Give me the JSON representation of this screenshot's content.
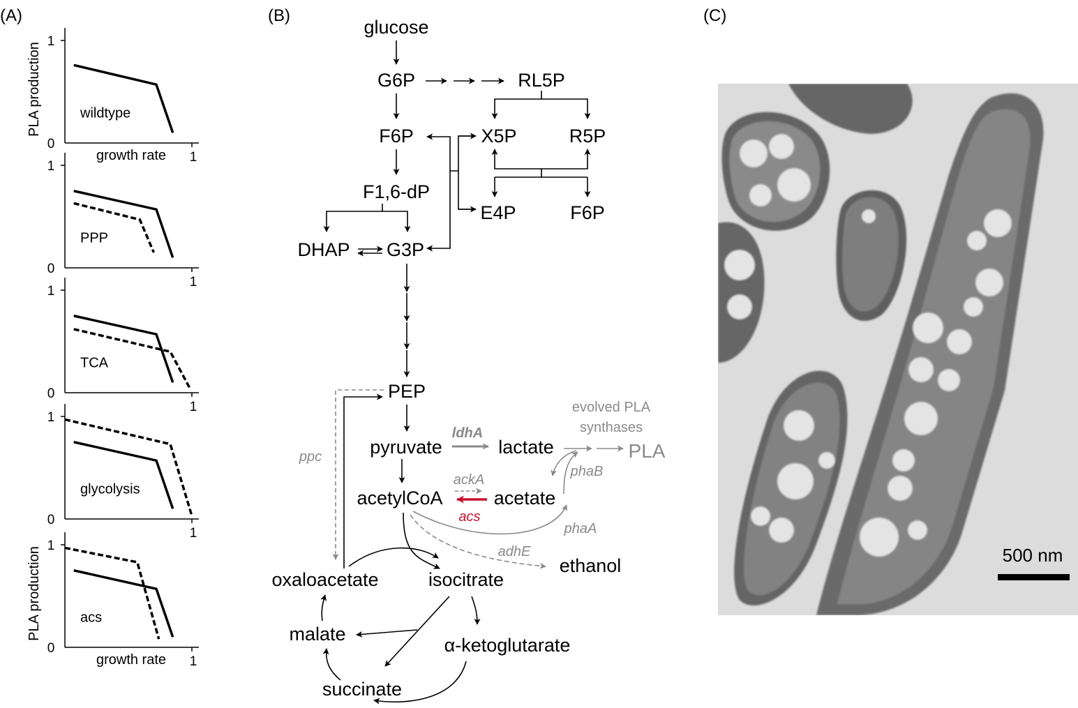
{
  "panels": {
    "a_label": "(A)",
    "b_label": "(B)",
    "c_label": "(C)"
  },
  "chart_data": [
    {
      "type": "line",
      "panel": "wildtype",
      "ylabel": "PLA production",
      "xlabel": "growth rate",
      "xlim": [
        0,
        1
      ],
      "ylim": [
        0,
        1
      ],
      "xticks": [
        "1"
      ],
      "yticks": [
        "0",
        "1"
      ],
      "series": [
        {
          "style": "solid",
          "x": [
            0.07,
            0.72,
            0.85
          ],
          "y": [
            0.76,
            0.57,
            0.1
          ]
        }
      ]
    },
    {
      "type": "line",
      "panel": "PPP",
      "ylabel": "",
      "xlabel": "",
      "xlim": [
        0,
        1
      ],
      "ylim": [
        0,
        1
      ],
      "xticks": [
        "1"
      ],
      "yticks": [
        "0",
        "1"
      ],
      "series": [
        {
          "style": "solid",
          "x": [
            0.07,
            0.72,
            0.85
          ],
          "y": [
            0.75,
            0.57,
            0.1
          ]
        },
        {
          "style": "dashed",
          "x": [
            0.07,
            0.59,
            0.7
          ],
          "y": [
            0.63,
            0.47,
            0.15
          ]
        }
      ]
    },
    {
      "type": "line",
      "panel": "TCA",
      "ylabel": "",
      "xlabel": "",
      "xlim": [
        0,
        1
      ],
      "ylim": [
        0,
        1
      ],
      "xticks": [
        "1"
      ],
      "yticks": [
        "0",
        "1"
      ],
      "series": [
        {
          "style": "solid",
          "x": [
            0.07,
            0.72,
            0.85
          ],
          "y": [
            0.75,
            0.57,
            0.1
          ]
        },
        {
          "style": "dashed",
          "x": [
            0.07,
            0.83,
            0.99
          ],
          "y": [
            0.62,
            0.4,
            0.03
          ]
        }
      ]
    },
    {
      "type": "line",
      "panel": "glycolysis",
      "ylabel": "",
      "xlabel": "",
      "xlim": [
        0,
        1
      ],
      "ylim": [
        0,
        1
      ],
      "xticks": [
        "1"
      ],
      "yticks": [
        "0",
        "1"
      ],
      "series": [
        {
          "style": "solid",
          "x": [
            0.07,
            0.72,
            0.85
          ],
          "y": [
            0.75,
            0.57,
            0.1
          ]
        },
        {
          "style": "dashed",
          "x": [
            0.0,
            0.83,
            1.0
          ],
          "y": [
            0.97,
            0.73,
            0.03
          ]
        }
      ]
    },
    {
      "type": "line",
      "panel": "acs",
      "ylabel": "PLA production",
      "xlabel": "growth rate",
      "xlim": [
        0,
        1
      ],
      "ylim": [
        0,
        1
      ],
      "xticks": [
        "1"
      ],
      "yticks": [
        "0",
        "1"
      ],
      "series": [
        {
          "style": "solid",
          "x": [
            0.07,
            0.72,
            0.85
          ],
          "y": [
            0.75,
            0.57,
            0.1
          ]
        },
        {
          "style": "dashed",
          "x": [
            0.0,
            0.57,
            0.74
          ],
          "y": [
            0.97,
            0.83,
            0.08
          ]
        }
      ]
    }
  ],
  "pathway": {
    "glucose": "glucose",
    "g6p": "G6P",
    "rl5p": "RL5P",
    "f6p": "F6P",
    "x5p": "X5P",
    "r5p": "R5P",
    "f16dp": "F1,6-dP",
    "e4p": "E4P",
    "f6p2": "F6P",
    "dhap": "DHAP",
    "g3p": "G3P",
    "pep": "PEP",
    "pyruvate": "pyruvate",
    "ldha": "ldhA",
    "lactate": "lactate",
    "evolved_line1": "evolved PLA",
    "evolved_line2": "synthases",
    "pla": "PLA",
    "ppc": "ppc",
    "acka": "ackA",
    "phab": "phaB",
    "acetylcoa": "acetylCoA",
    "acetate": "acetate",
    "acs": "acs",
    "phaa": "phaA",
    "adhe": "adhE",
    "ethanol": "ethanol",
    "oxaloacetate": "oxaloacetate",
    "isocitrate": "isocitrate",
    "malate": "malate",
    "akg": "α-ketoglutarate",
    "succinate": "succinate",
    "highlight_color": "#c8102e",
    "gray_color": "#8a8a8a"
  },
  "micrograph": {
    "scale_label": "500 nm"
  }
}
